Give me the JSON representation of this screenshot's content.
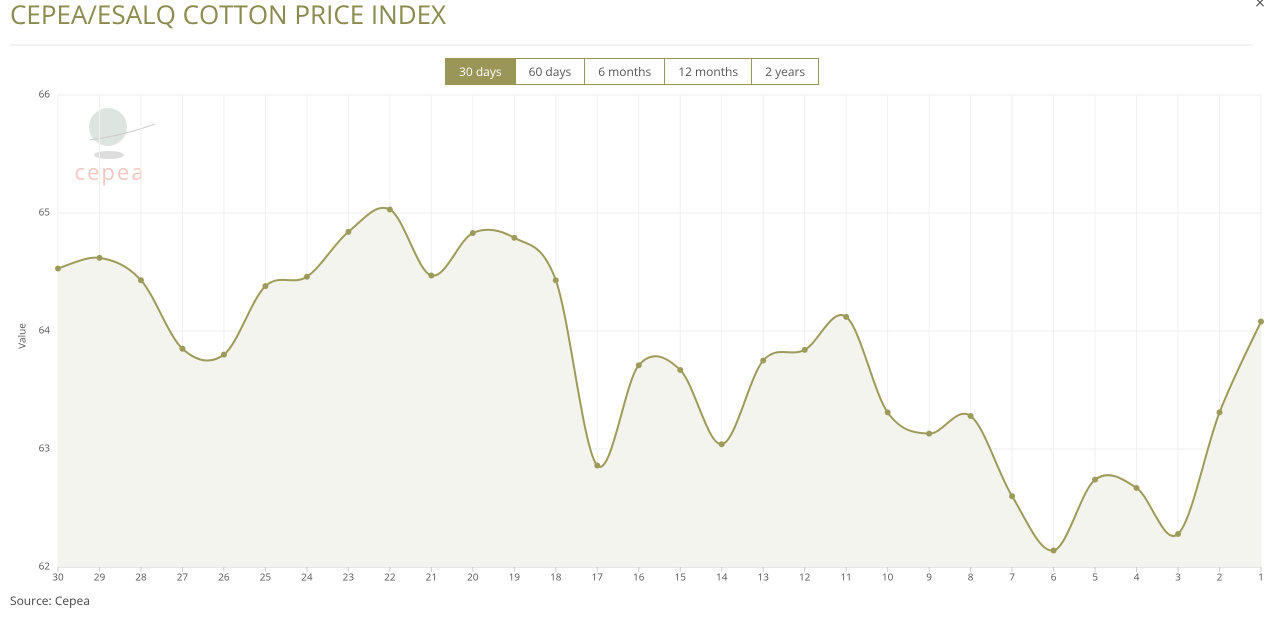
{
  "header": {
    "title": "CEPEA/ESALQ COTTON PRICE INDEX",
    "close": "×"
  },
  "range_buttons": [
    {
      "label": "30 days",
      "active": true
    },
    {
      "label": "60 days",
      "active": false
    },
    {
      "label": "6 months",
      "active": false
    },
    {
      "label": "12 months",
      "active": false
    },
    {
      "label": "2 years",
      "active": false
    }
  ],
  "chart_data": {
    "type": "line",
    "y_label": "Value",
    "logo_text": "cepea",
    "categories": [
      "30",
      "29",
      "28",
      "27",
      "26",
      "25",
      "24",
      "23",
      "22",
      "21",
      "20",
      "19",
      "18",
      "17",
      "16",
      "15",
      "14",
      "13",
      "12",
      "11",
      "10",
      "9",
      "8",
      "7",
      "6",
      "5",
      "4",
      "3",
      "2",
      "1"
    ],
    "values": [
      64.53,
      64.62,
      64.43,
      63.85,
      63.8,
      64.38,
      64.46,
      64.84,
      65.03,
      64.47,
      64.83,
      64.79,
      64.43,
      62.86,
      63.71,
      63.67,
      63.04,
      63.75,
      63.84,
      64.12,
      63.31,
      63.13,
      63.28,
      62.6,
      62.14,
      62.74,
      62.67,
      62.28,
      63.31,
      64.08
    ],
    "color": "#9e9a5a",
    "area_color": "#f4f4ef",
    "ylim": [
      62,
      66
    ],
    "yticks": [
      62,
      63,
      64,
      65,
      66
    ],
    "grid": true
  },
  "source": "Source: Cepea"
}
